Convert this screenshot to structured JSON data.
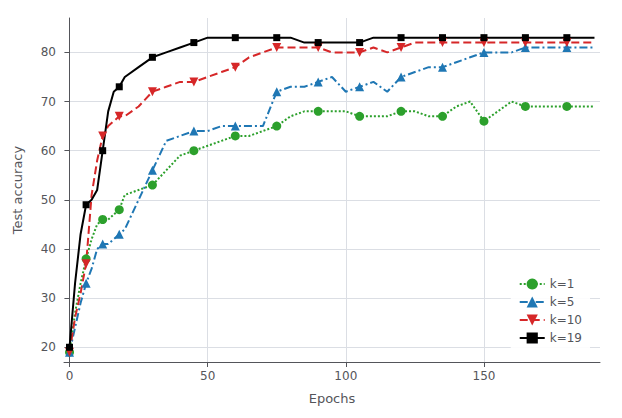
{
  "chart_data": {
    "type": "line",
    "xlabel": "Epochs",
    "ylabel": "Test accuracy",
    "xlim": [
      -2,
      192
    ],
    "ylim": [
      17,
      87
    ],
    "xticks": [
      0,
      50,
      100,
      150
    ],
    "yticks": [
      20,
      30,
      40,
      50,
      60,
      70,
      80
    ],
    "grid": true,
    "legend": "lower right",
    "x": [
      0,
      2,
      4,
      6,
      8,
      10,
      12,
      14,
      16,
      18,
      20,
      25,
      30,
      35,
      40,
      45,
      50,
      55,
      60,
      65,
      70,
      75,
      80,
      85,
      90,
      95,
      100,
      105,
      110,
      115,
      120,
      125,
      130,
      135,
      140,
      145,
      150,
      155,
      160,
      165,
      170,
      175,
      180,
      185,
      190
    ],
    "series": [
      {
        "name": "k=1",
        "color": "#2ca02c",
        "line_style": "dotted",
        "marker": "circle",
        "values": [
          19,
          27,
          33,
          38,
          42,
          45,
          46,
          46,
          47,
          48,
          51,
          52,
          53,
          56,
          59,
          60,
          61,
          62,
          63,
          63,
          64,
          65,
          67,
          68,
          68,
          68,
          68,
          67,
          67,
          67,
          68,
          68,
          67,
          67,
          69,
          70,
          66,
          68,
          70,
          69,
          69,
          69,
          69,
          69,
          69
        ]
      },
      {
        "name": "k=5",
        "color": "#1f77b4",
        "line_style": "dashdot",
        "marker": "triangle",
        "values": [
          19,
          24,
          29,
          33,
          36,
          40,
          41,
          41,
          42,
          43,
          44,
          50,
          56,
          62,
          63,
          64,
          64,
          65,
          65,
          65,
          65,
          72,
          73,
          73,
          74,
          75,
          72,
          73,
          74,
          72,
          75,
          76,
          77,
          77,
          78,
          79,
          80,
          80,
          80,
          81,
          81,
          81,
          81,
          81,
          81
        ]
      },
      {
        "name": "k=10",
        "color": "#d62728",
        "line_style": "dashed",
        "marker": "triangle-down",
        "values": [
          19,
          26,
          31,
          37,
          51,
          58,
          63,
          65,
          66,
          67,
          67,
          69,
          72,
          73,
          74,
          74,
          75,
          76,
          77,
          79,
          80,
          81,
          81,
          81,
          81,
          80,
          80,
          80,
          81,
          80,
          81,
          82,
          82,
          82,
          82,
          82,
          82,
          82,
          82,
          82,
          82,
          82,
          82,
          82,
          82
        ]
      },
      {
        "name": "k=19",
        "color": "#000000",
        "line_style": "solid",
        "marker": "square",
        "values": [
          20,
          33,
          43,
          49,
          50,
          52,
          60,
          68,
          72,
          73,
          75,
          77,
          79,
          80,
          81,
          82,
          83,
          83,
          83,
          83,
          83,
          83,
          83,
          82,
          82,
          82,
          82,
          82,
          83,
          83,
          83,
          83,
          83,
          83,
          83,
          83,
          83,
          83,
          83,
          83,
          83,
          83,
          83,
          83,
          83
        ]
      }
    ]
  }
}
